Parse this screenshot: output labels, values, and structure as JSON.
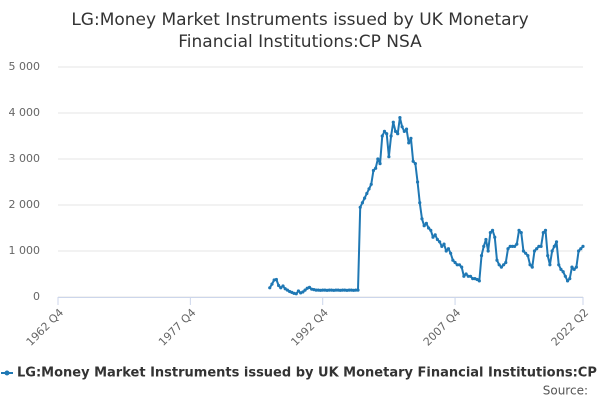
{
  "chart_data": {
    "type": "line",
    "title": [
      "LG:Money Market Instruments issued by UK Monetary",
      "Financial Institutions:CP NSA"
    ],
    "source": "Source:",
    "xlim": [
      "1962 Q4",
      "2022 Q2"
    ],
    "xticks": [
      "1962 Q4",
      "1977 Q4",
      "1992 Q4",
      "2007 Q4",
      "2022 Q2"
    ],
    "ylim": [
      0,
      5000
    ],
    "yticks": [
      0,
      {
        "value": 1000,
        "label": "1 000"
      },
      {
        "value": 2000,
        "label": "2 000"
      },
      {
        "value": 3000,
        "label": "3 000"
      },
      {
        "value": 4000,
        "label": "4 000"
      },
      {
        "value": 5000,
        "label": "5 000"
      }
    ],
    "grid": true,
    "legend": "bottom",
    "x": [
      "1986 Q4",
      "1987 Q1",
      "1987 Q2",
      "1987 Q3",
      "1987 Q4",
      "1988 Q1",
      "1988 Q2",
      "1988 Q3",
      "1988 Q4",
      "1989 Q1",
      "1989 Q2",
      "1989 Q3",
      "1989 Q4",
      "1990 Q1",
      "1990 Q2",
      "1990 Q3",
      "1990 Q4",
      "1991 Q1",
      "1991 Q2",
      "1991 Q3",
      "1991 Q4",
      "1992 Q1",
      "1992 Q2",
      "1992 Q3",
      "1992 Q4",
      "1993 Q1",
      "1993 Q2",
      "1993 Q3",
      "1993 Q4",
      "1994 Q1",
      "1994 Q2",
      "1994 Q3",
      "1994 Q4",
      "1995 Q1",
      "1995 Q2",
      "1995 Q3",
      "1995 Q4",
      "1996 Q1",
      "1996 Q2",
      "1996 Q3",
      "1996 Q4",
      "1997 Q1",
      "1997 Q2",
      "1997 Q3",
      "1997 Q4",
      "1998 Q1",
      "1998 Q2",
      "1998 Q3",
      "1998 Q4",
      "1999 Q1",
      "1999 Q2",
      "1999 Q3",
      "1999 Q4",
      "2000 Q1",
      "2000 Q2",
      "2000 Q3",
      "2000 Q4",
      "2001 Q1",
      "2001 Q2",
      "2001 Q3",
      "2001 Q4",
      "2002 Q1",
      "2002 Q2",
      "2002 Q3",
      "2002 Q4",
      "2003 Q1",
      "2003 Q2",
      "2003 Q3",
      "2003 Q4",
      "2004 Q1",
      "2004 Q2",
      "2004 Q3",
      "2004 Q4",
      "2005 Q1",
      "2005 Q2",
      "2005 Q3",
      "2005 Q4",
      "2006 Q1",
      "2006 Q2",
      "2006 Q3",
      "2006 Q4",
      "2007 Q1",
      "2007 Q2",
      "2007 Q3",
      "2007 Q4",
      "2008 Q1",
      "2008 Q2",
      "2008 Q3",
      "2008 Q4",
      "2009 Q1",
      "2009 Q2",
      "2009 Q3",
      "2009 Q4",
      "2010 Q1",
      "2010 Q2",
      "2010 Q3",
      "2010 Q4",
      "2011 Q1",
      "2011 Q2",
      "2011 Q3",
      "2011 Q4",
      "2012 Q1",
      "2012 Q2",
      "2012 Q3",
      "2012 Q4",
      "2013 Q1",
      "2013 Q2",
      "2013 Q3",
      "2013 Q4",
      "2014 Q1",
      "2014 Q2",
      "2014 Q3",
      "2014 Q4",
      "2015 Q1",
      "2015 Q2",
      "2015 Q3",
      "2015 Q4",
      "2016 Q1",
      "2016 Q2",
      "2016 Q3",
      "2016 Q4",
      "2017 Q1",
      "2017 Q2",
      "2017 Q3",
      "2017 Q4",
      "2018 Q1",
      "2018 Q2",
      "2018 Q3",
      "2018 Q4",
      "2019 Q1",
      "2019 Q2",
      "2019 Q3",
      "2019 Q4",
      "2020 Q1",
      "2020 Q2",
      "2020 Q3",
      "2020 Q4",
      "2021 Q1",
      "2021 Q2",
      "2021 Q3",
      "2021 Q4",
      "2022 Q1",
      "2022 Q2"
    ],
    "series": [
      {
        "name": "LG:Money Market Instruments issued by UK Monetary Financial Institutions:CP NSA",
        "color": "#1f78b4",
        "values": [
          200,
          280,
          370,
          380,
          250,
          200,
          240,
          180,
          150,
          120,
          100,
          80,
          70,
          130,
          90,
          110,
          150,
          190,
          210,
          170,
          160,
          150,
          150,
          145,
          150,
          150,
          145,
          150,
          150,
          145,
          150,
          150,
          145,
          150,
          150,
          145,
          150,
          150,
          145,
          150,
          150,
          1950,
          2050,
          2150,
          2250,
          2350,
          2450,
          2750,
          2800,
          3000,
          2900,
          3500,
          3600,
          3550,
          3050,
          3500,
          3800,
          3600,
          3550,
          3900,
          3700,
          3600,
          3650,
          3350,
          3450,
          2950,
          2900,
          2500,
          2050,
          1700,
          1550,
          1600,
          1500,
          1450,
          1300,
          1350,
          1250,
          1200,
          1100,
          1150,
          1000,
          1050,
          950,
          800,
          750,
          700,
          700,
          650,
          450,
          500,
          450,
          450,
          400,
          400,
          380,
          350,
          900,
          1100,
          1250,
          1000,
          1400,
          1450,
          1300,
          800,
          700,
          650,
          700,
          750,
          1050,
          1100,
          1100,
          1100,
          1150,
          1450,
          1400,
          1000,
          950,
          900,
          700,
          650,
          1000,
          1050,
          1100,
          1100,
          1400,
          1450,
          900,
          700,
          1000,
          1100,
          1200,
          700,
          600,
          550,
          450,
          350,
          400,
          650,
          600,
          650,
          1000,
          1050,
          1100
        ]
      }
    ]
  }
}
